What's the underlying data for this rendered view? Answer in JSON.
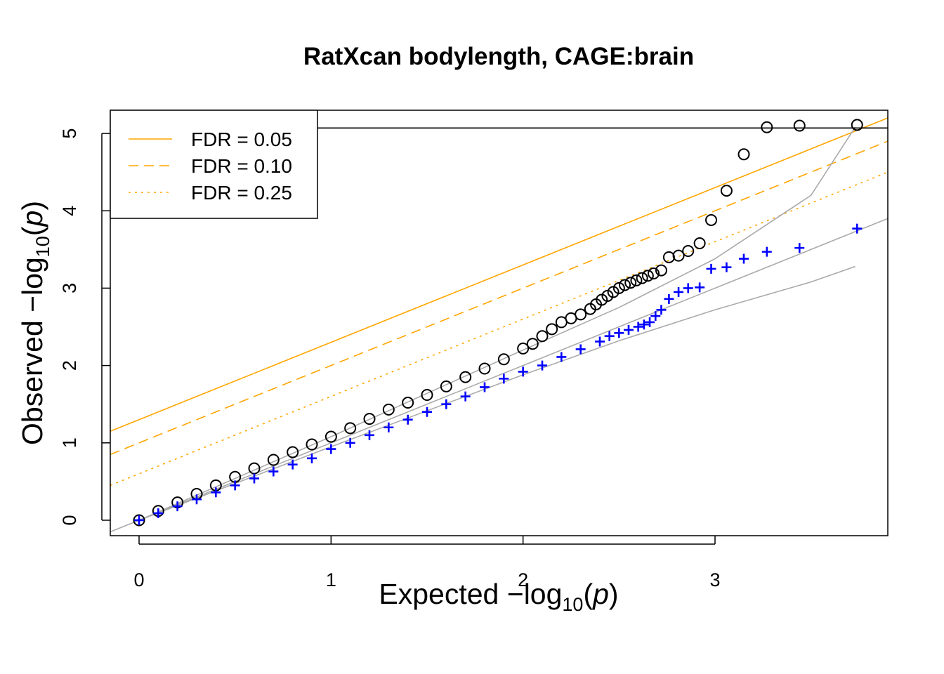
{
  "chart_data": {
    "type": "scatter",
    "title": "RatXcan bodylength, CAGE:brain",
    "xlabel": {
      "prefix": "Expected  −log",
      "sub": "10",
      "open": "(",
      "var": "p",
      "close": ")"
    },
    "ylabel": {
      "prefix": "Observed  −log",
      "sub": "10",
      "open": "(",
      "var": "p",
      "close": ")"
    },
    "xlim": [
      -0.15,
      3.9
    ],
    "ylim": [
      -0.2,
      5.3
    ],
    "x_ticks": [
      "0",
      "1",
      "2",
      "3"
    ],
    "y_ticks": [
      "0",
      "1",
      "2",
      "3",
      "4",
      "5"
    ],
    "grid": false,
    "legend": {
      "position": "top-left",
      "entries": [
        {
          "label": "FDR = 0.05",
          "color": "#FFA500",
          "dash": "solid"
        },
        {
          "label": "FDR = 0.10",
          "color": "#FFA500",
          "dash": "dashed"
        },
        {
          "label": "FDR = 0.25",
          "color": "#FFA500",
          "dash": "dotted"
        }
      ]
    },
    "reference_lines": [
      {
        "name": "FDR = 0.05",
        "intercept": 1.3,
        "slope": 1.0,
        "color": "#FFA500",
        "dash": "solid"
      },
      {
        "name": "FDR = 0.10",
        "intercept": 1.0,
        "slope": 1.0,
        "color": "#FFA500",
        "dash": "dashed"
      },
      {
        "name": "FDR = 0.25",
        "intercept": 0.6,
        "slope": 1.0,
        "color": "#FFA500",
        "dash": "dotted"
      },
      {
        "name": "",
        "intercept": 0.0,
        "slope": 1.0,
        "color": "#AAAAAA",
        "dash": "solid"
      }
    ],
    "horizontal_line": {
      "y": 5.07,
      "color": "#000000"
    },
    "confidence_band": {
      "color": "#AAAAAA",
      "upper": [
        [
          0,
          0
        ],
        [
          1,
          1.08
        ],
        [
          2,
          2.2
        ],
        [
          2.5,
          2.75
        ],
        [
          3,
          3.38
        ],
        [
          3.5,
          4.2
        ],
        [
          3.73,
          5.08
        ]
      ],
      "lower": [
        [
          0,
          0
        ],
        [
          1,
          0.95
        ],
        [
          2,
          1.88
        ],
        [
          2.5,
          2.32
        ],
        [
          3,
          2.72
        ],
        [
          3.5,
          3.08
        ],
        [
          3.73,
          3.28
        ]
      ]
    },
    "series": [
      {
        "marker": "circle",
        "color": "#000000",
        "x": [
          0,
          0.1,
          0.2,
          0.3,
          0.4,
          0.5,
          0.6,
          0.7,
          0.8,
          0.9,
          1.0,
          1.1,
          1.2,
          1.3,
          1.4,
          1.5,
          1.6,
          1.7,
          1.8,
          1.9,
          2.0,
          2.05,
          2.1,
          2.15,
          2.2,
          2.25,
          2.3,
          2.35,
          2.38,
          2.41,
          2.44,
          2.47,
          2.5,
          2.53,
          2.56,
          2.59,
          2.62,
          2.65,
          2.68,
          2.72,
          2.76,
          2.81,
          2.86,
          2.92,
          2.98,
          3.06,
          3.15,
          3.27,
          3.44,
          3.74
        ],
        "y": [
          0,
          0.12,
          0.23,
          0.34,
          0.45,
          0.56,
          0.67,
          0.78,
          0.88,
          0.98,
          1.08,
          1.19,
          1.31,
          1.43,
          1.52,
          1.62,
          1.73,
          1.85,
          1.96,
          2.08,
          2.22,
          2.28,
          2.38,
          2.47,
          2.56,
          2.61,
          2.66,
          2.73,
          2.79,
          2.85,
          2.9,
          2.95,
          3.0,
          3.04,
          3.07,
          3.1,
          3.13,
          3.16,
          3.19,
          3.23,
          3.4,
          3.42,
          3.48,
          3.58,
          3.88,
          4.26,
          4.73,
          5.08,
          5.1,
          5.11
        ]
      },
      {
        "marker": "plus",
        "color": "#0000FF",
        "x": [
          0,
          0.1,
          0.2,
          0.3,
          0.4,
          0.5,
          0.6,
          0.7,
          0.8,
          0.9,
          1.0,
          1.1,
          1.2,
          1.3,
          1.4,
          1.5,
          1.6,
          1.7,
          1.8,
          1.9,
          2.0,
          2.1,
          2.2,
          2.3,
          2.4,
          2.45,
          2.5,
          2.55,
          2.6,
          2.63,
          2.66,
          2.69,
          2.72,
          2.76,
          2.81,
          2.86,
          2.92,
          2.98,
          3.06,
          3.15,
          3.27,
          3.44,
          3.74
        ],
        "y": [
          0,
          0.09,
          0.18,
          0.27,
          0.36,
          0.45,
          0.54,
          0.63,
          0.72,
          0.8,
          0.92,
          1.0,
          1.1,
          1.2,
          1.3,
          1.4,
          1.5,
          1.6,
          1.72,
          1.83,
          1.92,
          2.0,
          2.11,
          2.21,
          2.31,
          2.38,
          2.42,
          2.46,
          2.5,
          2.53,
          2.56,
          2.64,
          2.72,
          2.86,
          2.95,
          3.0,
          3.01,
          3.25,
          3.27,
          3.38,
          3.47,
          3.52,
          3.77
        ]
      }
    ]
  }
}
